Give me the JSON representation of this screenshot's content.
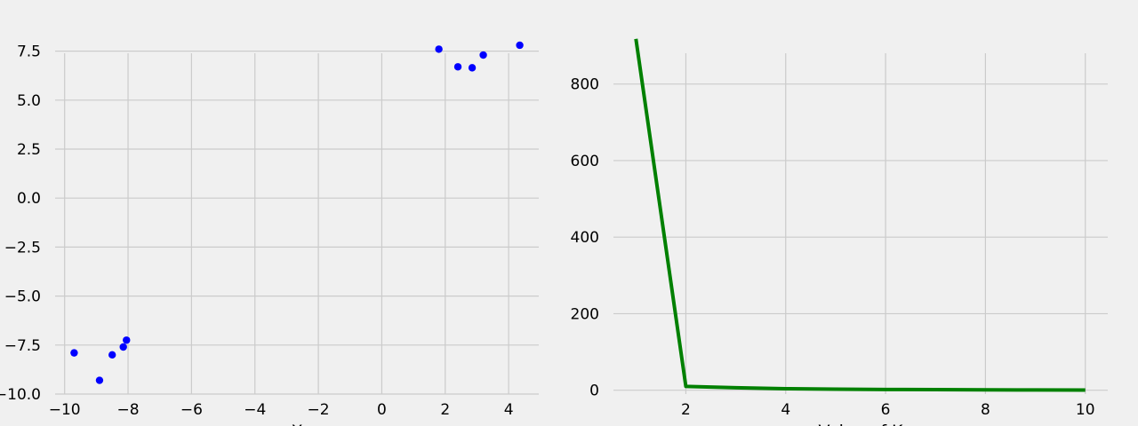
{
  "chart_data": [
    {
      "type": "scatter",
      "xlabel": "X",
      "ylabel": "",
      "xlim": [
        -10.3,
        4.95
      ],
      "ylim": [
        -10.0,
        8.75
      ],
      "xticks": [
        -10,
        -8,
        -6,
        -4,
        -2,
        0,
        2,
        4
      ],
      "xtick_labels": [
        "−10",
        "−8",
        "−6",
        "−4",
        "−2",
        "0",
        "2",
        "4"
      ],
      "yticks": [
        -10.0,
        -7.5,
        -5.0,
        -2.5,
        0.0,
        2.5,
        5.0,
        7.5
      ],
      "ytick_labels": [
        "−10.0",
        "−7.5",
        "−5.0",
        "−2.5",
        "0.0",
        "2.5",
        "5.0",
        "7.5"
      ],
      "grid": true,
      "color": "#0000ff",
      "series": [
        {
          "points": [
            {
              "x": 1.8,
              "y": 7.6
            },
            {
              "x": 2.4,
              "y": 6.7
            },
            {
              "x": 2.85,
              "y": 6.65
            },
            {
              "x": 3.2,
              "y": 7.3
            },
            {
              "x": 4.35,
              "y": 7.8
            },
            {
              "x": -9.7,
              "y": -7.9
            },
            {
              "x": -8.9,
              "y": -9.3
            },
            {
              "x": -8.5,
              "y": -8.0
            },
            {
              "x": -8.15,
              "y": -7.6
            },
            {
              "x": -8.05,
              "y": -7.25
            }
          ]
        }
      ]
    },
    {
      "type": "line",
      "xlabel": "Value of K",
      "ylabel": "",
      "xlim": [
        0.55,
        10.45
      ],
      "ylim": [
        -10,
        950
      ],
      "xticks": [
        2,
        4,
        6,
        8,
        10
      ],
      "xtick_labels": [
        "2",
        "4",
        "6",
        "8",
        "10"
      ],
      "yticks": [
        0,
        200,
        400,
        600,
        800
      ],
      "ytick_labels": [
        "0",
        "200",
        "400",
        "600",
        "800"
      ],
      "grid": true,
      "color": "#008000",
      "series": [
        {
          "x": [
            1,
            2,
            3,
            4,
            5,
            6,
            7,
            8,
            9,
            10
          ],
          "values": [
            918,
            10,
            6.5,
            4,
            2.8,
            2,
            1.5,
            1,
            0.7,
            0.4
          ]
        }
      ]
    }
  ]
}
